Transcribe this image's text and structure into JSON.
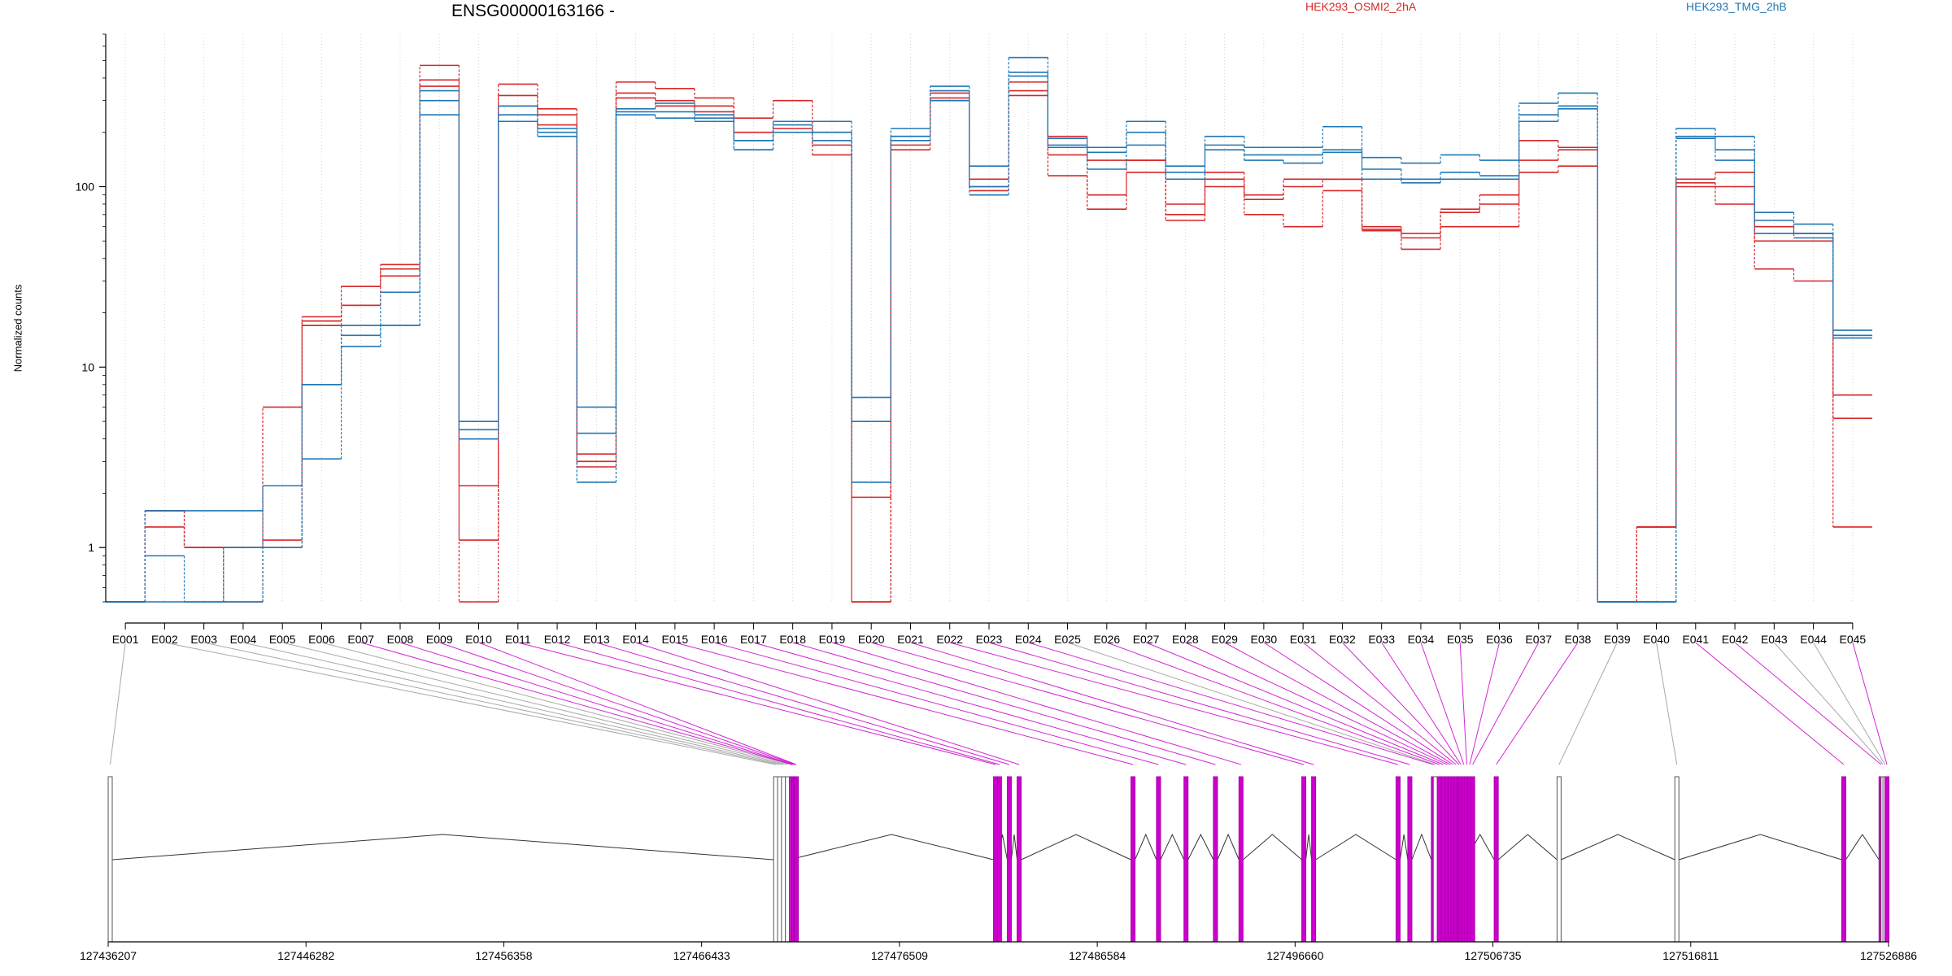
{
  "chart_data": {
    "type": "line",
    "title": "ENSG00000163166 -",
    "ylabel": "Normalized counts",
    "xlabel": "",
    "yscale": "log",
    "ylim": [
      0.5,
      700
    ],
    "yticks": [
      1,
      10,
      100
    ],
    "ytick_labels": [
      "1",
      "10",
      "100"
    ],
    "grid": "vertical dotted",
    "legend_placement": "top",
    "categories": [
      "E001",
      "E002",
      "E003",
      "E004",
      "E005",
      "E006",
      "E007",
      "E008",
      "E009",
      "E010",
      "E011",
      "E012",
      "E013",
      "E014",
      "E015",
      "E016",
      "E017",
      "E018",
      "E019",
      "E020",
      "E021",
      "E022",
      "E023",
      "E024",
      "E025",
      "E026",
      "E027",
      "E028",
      "E029",
      "E030",
      "E031",
      "E032",
      "E033",
      "E034",
      "E035",
      "E036",
      "E037",
      "E038",
      "E039",
      "E040",
      "E041",
      "E042",
      "E043",
      "E044",
      "E045"
    ],
    "groups": [
      {
        "name": "HEK293_OSMI2_2hA",
        "color": "#d62728",
        "series": [
          {
            "values": [
              0.5,
              1.6,
              1.0,
              0.5,
              6.0,
              19,
              28,
              37,
              470,
              2.2,
              370,
              270,
              3.3,
              380,
              350,
              310,
              240,
              300,
              200,
              0.5,
              190,
              330,
              110,
              380,
              190,
              140,
              140,
              80,
              120,
              90,
              110,
              110,
              60,
              55,
              75,
              90,
              180,
              165,
              0.5,
              1.3,
              110,
              120,
              60,
              55,
              7
            ]
          },
          {
            "values": [
              0.5,
              1.3,
              1.0,
              1.0,
              1.1,
              18,
              22,
              35,
              390,
              1.1,
              320,
              250,
              3.0,
              330,
              300,
              280,
              200,
              230,
              170,
              1.9,
              170,
              310,
              100,
              340,
              150,
              90,
              140,
              70,
              110,
              85,
              100,
              110,
              58,
              52,
              72,
              80,
              140,
              160,
              0.5,
              1.3,
              105,
              100,
              50,
              50,
              5.2
            ]
          },
          {
            "values": [
              0.5,
              1.6,
              1.0,
              1.0,
              1.0,
              17,
              22,
              32,
              360,
              0.5,
              280,
              220,
              2.8,
              310,
              280,
              260,
              180,
              210,
              150,
              0.5,
              160,
              300,
              95,
              320,
              115,
              75,
              120,
              65,
              100,
              70,
              60,
              95,
              57,
              45,
              60,
              60,
              120,
              130,
              0.5,
              1.3,
              100,
              80,
              35,
              30,
              1.3
            ]
          }
        ]
      },
      {
        "name": "HEK293_TMG_2hB",
        "color": "#1f77b4",
        "series": [
          {
            "values": [
              0.5,
              1.6,
              1.6,
              1.6,
              2.2,
              8,
              17,
              26,
              340,
              5.0,
              280,
              210,
              6.0,
              270,
              290,
              250,
              180,
              230,
              230,
              6.8,
              210,
              360,
              130,
              520,
              185,
              165,
              230,
              130,
              190,
              165,
              165,
              215,
              145,
              135,
              150,
              140,
              290,
              330,
              0.5,
              0.5,
              210,
              190,
              72,
              62,
              16
            ]
          },
          {
            "values": [
              0.5,
              0.9,
              0.5,
              1.0,
              2.2,
              8,
              15,
              17,
              300,
              4.0,
              250,
              200,
              4.3,
              260,
              260,
              240,
              160,
              220,
              200,
              5.0,
              190,
              340,
              100,
              430,
              170,
              155,
              200,
              120,
              170,
              150,
              150,
              160,
              125,
              110,
              120,
              115,
              250,
              280,
              0.5,
              0.5,
              190,
              160,
              65,
              55,
              15
            ]
          },
          {
            "values": [
              0.5,
              0.5,
              0.5,
              0.5,
              1.0,
              3.1,
              13,
              17,
              250,
              4.5,
              230,
              190,
              2.3,
              250,
              240,
              230,
              160,
              200,
              180,
              2.3,
              180,
              300,
              90,
              410,
              165,
              125,
              170,
              110,
              160,
              140,
              135,
              155,
              110,
              105,
              110,
              110,
              230,
              270,
              0.5,
              0.5,
              185,
              140,
              55,
              52,
              14.5
            ]
          }
        ]
      }
    ],
    "annotation_exons": [
      "E001",
      "E002",
      "E003",
      "E004",
      "E005",
      "E006",
      "E007",
      "E008",
      "E009",
      "E010",
      "E011",
      "E012",
      "E013",
      "E014",
      "E015",
      "E016",
      "E017",
      "E018",
      "E019",
      "E020",
      "E021",
      "E022",
      "E023",
      "E024",
      "E025",
      "E026",
      "E027",
      "E028",
      "E029",
      "E030",
      "E031",
      "E032",
      "E033",
      "E034",
      "E035",
      "E036",
      "E037",
      "E038",
      "E039",
      "E040",
      "E041",
      "E042",
      "E043",
      "E044",
      "E045"
    ],
    "exon_significant": [
      false,
      false,
      false,
      false,
      false,
      false,
      true,
      true,
      true,
      true,
      true,
      true,
      true,
      true,
      true,
      true,
      true,
      true,
      true,
      true,
      true,
      true,
      true,
      true,
      false,
      true,
      true,
      true,
      true,
      true,
      true,
      true,
      true,
      true,
      true,
      true,
      true,
      true,
      false,
      false,
      true,
      true,
      false,
      false,
      true
    ],
    "exon_genomic_starts": [
      127436207,
      127470100,
      127470300,
      127470500,
      127470700,
      127470900,
      127470950,
      127471000,
      127471100,
      127471150,
      127481300,
      127481500,
      127482000,
      127482500,
      127488300,
      127489600,
      127491000,
      127492500,
      127493800,
      127497000,
      127497500,
      127501800,
      127502400,
      127503600,
      127503700,
      127503900,
      127504100,
      127504300,
      127504450,
      127504600,
      127504750,
      127504900,
      127505000,
      127505150,
      127505300,
      127505450,
      127505600,
      127506800,
      127510000,
      127516000,
      127524500,
      127526400,
      127526500,
      127526600,
      127526700
    ],
    "genomic_axis": {
      "range": [
        127436207,
        127526886
      ],
      "ticks": [
        127436207,
        127446282,
        127456358,
        127466433,
        127476509,
        127486584,
        127496660,
        127506735,
        127516811,
        127526886
      ],
      "tick_labels": [
        "127436207",
        "127446282",
        "127456358",
        "127466433",
        "127476509",
        "127486584",
        "127496660",
        "127506735",
        "127516811",
        "127526886"
      ]
    },
    "colors": {
      "significant": "#cc00cc",
      "not_significant": "#999999"
    }
  }
}
